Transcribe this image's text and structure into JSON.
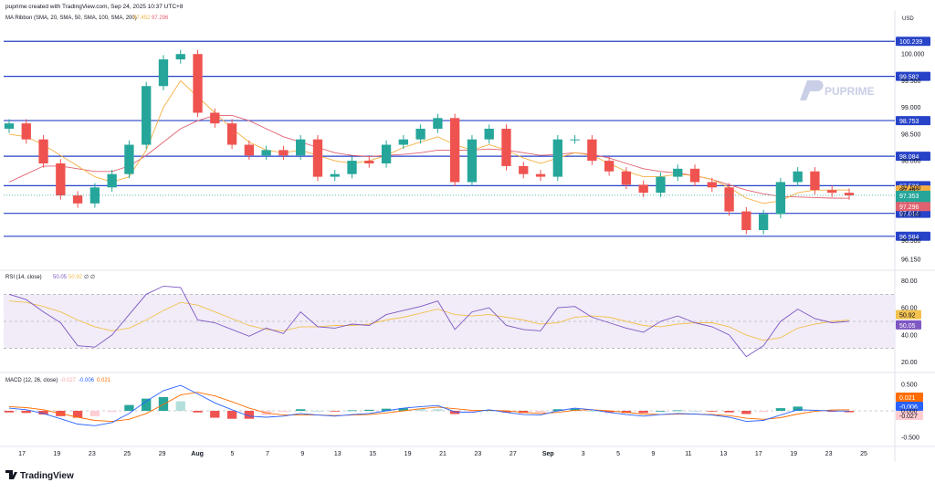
{
  "header": {
    "created_by": "puprime created with TradingView.com, Sep 24, 2025 10:37 UTC+8"
  },
  "branding": {
    "watermark": "PUPRIME",
    "footer_logo": "TradingView"
  },
  "price_pane": {
    "currency": "USD",
    "indicator_legend": {
      "label": "MA Ribbon (SMA, 20, SMA, 50, SMA, 100, SMA, 200)",
      "val1": "97.452",
      "val2": "97.296"
    },
    "axis_ticks": [
      "100.000",
      "99.500",
      "99.000",
      "98.500",
      "98.000",
      "97.500",
      "97.000",
      "96.500",
      "96.150"
    ],
    "level_lines": [
      {
        "value": 100.239,
        "label": "100.239"
      },
      {
        "value": 99.582,
        "label": "99.582"
      },
      {
        "value": 98.753,
        "label": "98.753"
      },
      {
        "value": 98.084,
        "label": "98.084"
      },
      {
        "value": 97.532,
        "label": "97.532"
      },
      {
        "value": 97.014,
        "label": "97.014"
      },
      {
        "value": 96.584,
        "label": "96.584"
      }
    ],
    "ma20_badge": {
      "value": 97.452,
      "label": "97.452"
    },
    "ma50_badge": {
      "value": 97.296,
      "label": "97.296"
    },
    "last_price": {
      "value": 97.353,
      "label": "97.353",
      "countdown": "22:14"
    }
  },
  "rsi_pane": {
    "legend": {
      "label": "RSI (14, close)",
      "rsi": "50.05",
      "ma": "50.92",
      "extra": "∅ ∅"
    },
    "axis_ticks": [
      "80.00",
      "60.00",
      "40.00",
      "20.00"
    ],
    "badges": {
      "ma": "50.92",
      "rsi": "50.05"
    }
  },
  "macd_pane": {
    "legend": {
      "label": "MACD (12, 26, close)",
      "hist": "-0.027",
      "macd": "-0.006",
      "signal": "0.021"
    },
    "axis_ticks": [
      "0.500",
      "0.000",
      "-0.500"
    ],
    "badges": {
      "signal": "0.021",
      "macd": "-0.006",
      "hist": "-0.027"
    }
  },
  "time_axis": [
    "17",
    "19",
    "23",
    "25",
    "29",
    "Aug",
    "5",
    "7",
    "9",
    "13",
    "15",
    "19",
    "21",
    "23",
    "27",
    "Sep",
    "3",
    "5",
    "9",
    "11",
    "13",
    "17",
    "19",
    "23",
    "25"
  ],
  "colors": {
    "up": "#26a69a",
    "down": "#ef5350",
    "level_line": "#2743c8",
    "ma_fast": "#f5b041",
    "ma_slow": "#e0616f",
    "rsi_line": "#7e57c2",
    "rsi_ma": "#f2c14e",
    "macd_line": "#2962ff",
    "signal_line": "#ff6d00"
  },
  "chart_data": [
    {
      "type": "candlestick",
      "title": "",
      "symbol_currency": "USD",
      "ylim": [
        96.05,
        100.5
      ],
      "x": [
        "Jul 17",
        "Jul 18",
        "Jul 21",
        "Jul 22",
        "Jul 23",
        "Jul 24",
        "Jul 25",
        "Jul 28",
        "Jul 29",
        "Jul 30",
        "Jul 31",
        "Aug 1",
        "Aug 4",
        "Aug 5",
        "Aug 6",
        "Aug 7",
        "Aug 8",
        "Aug 11",
        "Aug 12",
        "Aug 13",
        "Aug 14",
        "Aug 15",
        "Aug 18",
        "Aug 19",
        "Aug 20",
        "Aug 21",
        "Aug 22",
        "Aug 25",
        "Aug 26",
        "Aug 27",
        "Aug 28",
        "Aug 29",
        "Sep 1",
        "Sep 2",
        "Sep 3",
        "Sep 4",
        "Sep 5",
        "Sep 8",
        "Sep 9",
        "Sep 10",
        "Sep 11",
        "Sep 12",
        "Sep 15",
        "Sep 16",
        "Sep 17",
        "Sep 18",
        "Sep 19",
        "Sep 22",
        "Sep 23",
        "Sep 24"
      ],
      "close": [
        98.7,
        98.4,
        97.95,
        97.35,
        97.2,
        97.5,
        97.75,
        98.3,
        99.4,
        99.9,
        100.0,
        98.9,
        98.7,
        98.3,
        98.1,
        98.2,
        98.1,
        98.4,
        97.7,
        97.75,
        98.0,
        97.95,
        98.3,
        98.4,
        98.6,
        98.8,
        97.6,
        98.4,
        98.6,
        97.9,
        97.75,
        97.7,
        98.4,
        98.4,
        98.0,
        97.8,
        97.55,
        97.4,
        97.7,
        97.85,
        97.6,
        97.5,
        97.05,
        96.7,
        97.0,
        97.6,
        97.8,
        97.45,
        97.4,
        97.35
      ],
      "ma_fast": [
        98.5,
        98.45,
        98.3,
        98.1,
        97.9,
        97.7,
        97.6,
        97.7,
        98.2,
        99.0,
        99.5,
        99.2,
        98.9,
        98.6,
        98.35,
        98.2,
        98.15,
        98.2,
        98.1,
        98.0,
        97.95,
        98.0,
        98.1,
        98.25,
        98.35,
        98.45,
        98.3,
        98.2,
        98.3,
        98.2,
        98.05,
        97.95,
        98.05,
        98.15,
        98.1,
        97.95,
        97.8,
        97.7,
        97.7,
        97.75,
        97.72,
        97.65,
        97.5,
        97.3,
        97.2,
        97.25,
        97.4,
        97.45,
        97.45,
        97.452
      ],
      "ma_slow": [
        97.6,
        97.75,
        97.9,
        97.9,
        97.85,
        97.8,
        97.8,
        97.9,
        98.1,
        98.35,
        98.6,
        98.75,
        98.85,
        98.85,
        98.75,
        98.6,
        98.45,
        98.35,
        98.25,
        98.15,
        98.1,
        98.08,
        98.1,
        98.12,
        98.15,
        98.2,
        98.2,
        98.2,
        98.22,
        98.2,
        98.15,
        98.1,
        98.12,
        98.15,
        98.12,
        98.05,
        97.95,
        97.85,
        97.8,
        97.77,
        97.72,
        97.65,
        97.55,
        97.45,
        97.38,
        97.33,
        97.32,
        97.31,
        97.3,
        97.296
      ]
    },
    {
      "type": "line",
      "title": "",
      "ylim": [
        15,
        85
      ],
      "series": [
        {
          "name": "RSI (14, close)",
          "values": [
            70,
            66,
            57,
            49,
            32,
            31,
            40,
            55,
            70,
            76,
            75,
            51,
            49,
            44,
            39,
            45,
            41,
            57,
            46,
            45,
            48,
            47,
            55,
            58,
            61,
            65,
            44,
            57,
            60,
            47,
            44,
            43,
            60,
            61,
            53,
            49,
            45,
            42,
            50,
            54,
            49,
            46,
            40,
            24,
            32,
            50,
            59,
            52,
            49,
            50.05
          ]
        },
        {
          "name": "",
          "values": [
            65,
            64,
            61,
            57,
            51,
            46,
            43,
            45,
            51,
            58,
            64,
            62,
            57,
            52,
            47,
            44,
            43,
            46,
            46,
            47,
            47,
            48,
            51,
            53,
            56,
            59,
            55,
            54,
            55,
            53,
            51,
            48,
            49,
            53,
            54,
            53,
            50,
            47,
            46,
            48,
            49,
            49,
            46,
            40,
            36,
            38,
            45,
            48,
            50,
            50.92
          ]
        }
      ]
    },
    {
      "type": "bar+line",
      "title": "",
      "ylim": [
        -0.62,
        0.62
      ],
      "series": [
        {
          "name": "MACD (12, 26, close)",
          "values": [
            0.05,
            0.02,
            -0.05,
            -0.15,
            -0.25,
            -0.28,
            -0.22,
            -0.05,
            0.18,
            0.38,
            0.48,
            0.32,
            0.15,
            0.02,
            -0.1,
            -0.12,
            -0.1,
            -0.05,
            -0.08,
            -0.1,
            -0.07,
            -0.05,
            0.0,
            0.05,
            0.08,
            0.1,
            -0.02,
            -0.03,
            0.02,
            -0.03,
            -0.07,
            -0.08,
            0.0,
            0.05,
            0.02,
            -0.03,
            -0.07,
            -0.1,
            -0.07,
            -0.05,
            -0.06,
            -0.08,
            -0.12,
            -0.2,
            -0.18,
            -0.08,
            0.02,
            0.01,
            -0.002,
            -0.006
          ]
        },
        {
          "name": "",
          "values": [
            0.08,
            0.06,
            0.02,
            -0.05,
            -0.12,
            -0.18,
            -0.2,
            -0.16,
            -0.05,
            0.12,
            0.3,
            0.35,
            0.28,
            0.17,
            0.05,
            -0.04,
            -0.08,
            -0.08,
            -0.08,
            -0.09,
            -0.08,
            -0.07,
            -0.04,
            0.0,
            0.04,
            0.07,
            0.04,
            0.01,
            0.01,
            0.0,
            -0.03,
            -0.05,
            -0.03,
            0.01,
            0.02,
            0.0,
            -0.03,
            -0.06,
            -0.07,
            -0.06,
            -0.06,
            -0.07,
            -0.09,
            -0.14,
            -0.16,
            -0.13,
            -0.06,
            -0.01,
            0.015,
            0.021
          ]
        },
        {
          "name": "",
          "values": [
            -0.03,
            -0.04,
            -0.07,
            -0.1,
            -0.13,
            -0.1,
            -0.02,
            0.11,
            0.23,
            0.26,
            0.18,
            -0.03,
            -0.13,
            -0.15,
            -0.15,
            -0.08,
            -0.02,
            0.03,
            0.0,
            -0.01,
            0.01,
            0.02,
            0.04,
            0.05,
            0.04,
            0.03,
            -0.06,
            -0.04,
            0.01,
            -0.03,
            -0.04,
            -0.03,
            0.03,
            0.04,
            0.0,
            -0.03,
            -0.04,
            -0.04,
            0.0,
            0.01,
            0.0,
            -0.01,
            -0.03,
            -0.06,
            -0.02,
            0.05,
            0.08,
            0.02,
            -0.017,
            -0.027
          ]
        }
      ]
    }
  ]
}
